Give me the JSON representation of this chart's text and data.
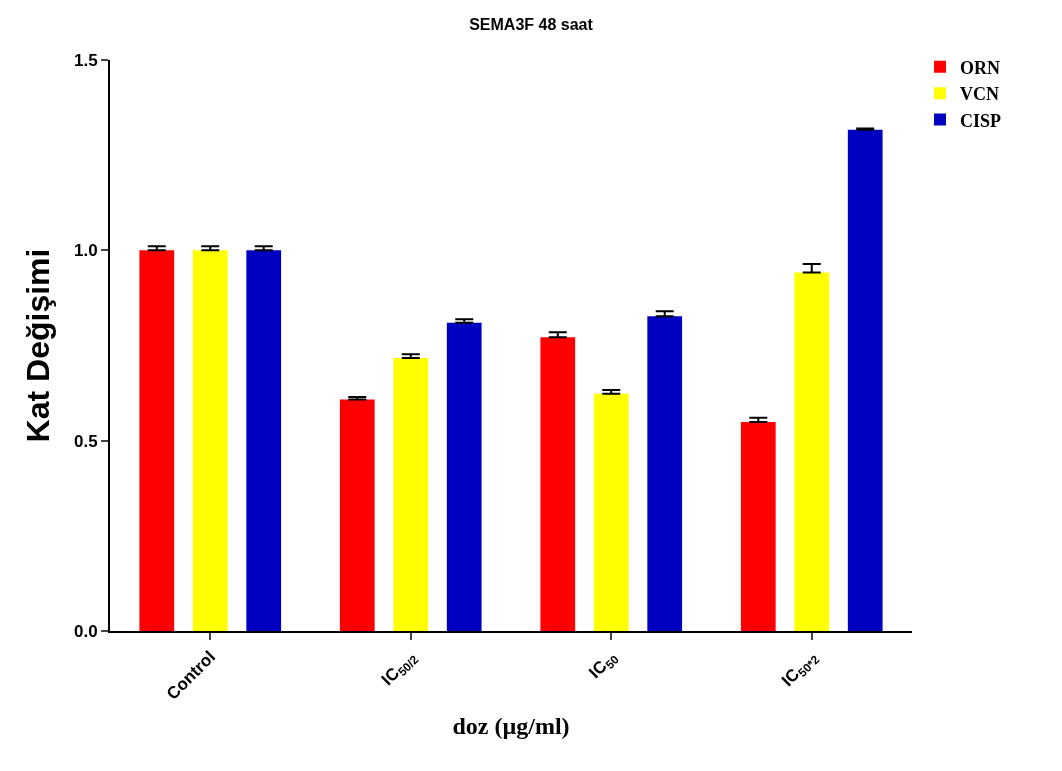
{
  "chart_data": {
    "type": "bar",
    "title": "SEMA3F 48 saat",
    "xlabel": "doz (µg/ml)",
    "ylabel": "Kat Değişimi",
    "categories": [
      "Control",
      "IC$_{50/2}$",
      "IC$_{50}$",
      "IC$_{50*2}$"
    ],
    "series": [
      {
        "name": "ORN",
        "color": "#ff0000",
        "values": [
          1.0,
          0.608,
          0.772,
          0.549
        ],
        "errors": [
          [
            1.0,
            1.011
          ],
          [
            0.608,
            0.615
          ],
          [
            0.772,
            0.785
          ],
          [
            0.549,
            0.56
          ]
        ]
      },
      {
        "name": "VCN",
        "color": "#ffff00",
        "values": [
          1.0,
          0.717,
          0.623,
          0.942
        ],
        "errors": [
          [
            1.0,
            1.011
          ],
          [
            0.717,
            0.727
          ],
          [
            0.623,
            0.633
          ],
          [
            0.942,
            0.964
          ]
        ]
      },
      {
        "name": "CISP",
        "color": "#0000c0",
        "values": [
          1.0,
          0.81,
          0.827,
          1.317
        ],
        "errors": [
          [
            1.0,
            1.011
          ],
          [
            0.81,
            0.819
          ],
          [
            0.827,
            0.84
          ],
          [
            1.317,
            1.32
          ]
        ]
      }
    ],
    "ylim": [
      0,
      1.5
    ],
    "yticks": [
      {
        "value": 0,
        "label": "0.0"
      },
      {
        "value": 0.5,
        "label": "0.5"
      },
      {
        "value": 1.0,
        "label": "1.0"
      },
      {
        "value": 1.5,
        "label": "1.5"
      }
    ],
    "legend": "top right"
  }
}
